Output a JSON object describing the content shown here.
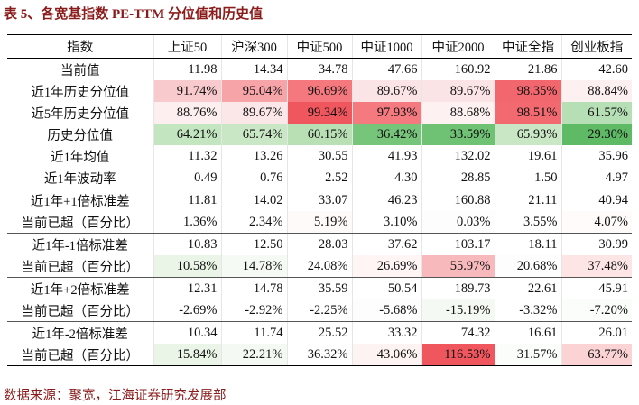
{
  "header": {
    "title": "表 5、各宽基指数 PE-TTM 分位值和历史值"
  },
  "table": {
    "columns": [
      "指数",
      "上证50",
      "沪深300",
      "中证500",
      "中证1000",
      "中证2000",
      "中证全指",
      "创业板指"
    ],
    "rows": [
      {
        "label": "当前值",
        "cells": [
          "11.98",
          "14.34",
          "34.78",
          "47.66",
          "160.92",
          "21.86",
          "42.60"
        ],
        "colors": [
          "#ffffff",
          "#ffffff",
          "#ffffff",
          "#ffffff",
          "#ffffff",
          "#ffffff",
          "#ffffff"
        ]
      },
      {
        "label": "近1年历史分位值",
        "cells": [
          "91.74%",
          "95.04%",
          "96.69%",
          "89.67%",
          "89.67%",
          "98.35%",
          "88.84%"
        ],
        "colors": [
          "#f9cacd",
          "#f7a4a9",
          "#f4787e",
          "#fbe4e6",
          "#fbe4e6",
          "#f2676e",
          "#fdf0f1"
        ]
      },
      {
        "label": "近5年历史分位值",
        "cells": [
          "88.76%",
          "89.67%",
          "99.34%",
          "97.93%",
          "88.68%",
          "98.51%",
          "61.57%"
        ],
        "colors": [
          "#fdeff0",
          "#fbe6e8",
          "#f0565d",
          "#f47a80",
          "#fdf1f2",
          "#f26a70",
          "#b7dfb5"
        ]
      },
      {
        "label": "历史分位值",
        "cells": [
          "64.21%",
          "65.74%",
          "60.15%",
          "36.42%",
          "33.59%",
          "65.93%",
          "29.30%"
        ],
        "colors": [
          "#c3e5bf",
          "#c9e7c5",
          "#b9e0b5",
          "#77c47b",
          "#6fc174",
          "#c9e7c5",
          "#5fba66"
        ]
      },
      {
        "label": "近1年均值",
        "cells": [
          "11.32",
          "13.26",
          "30.55",
          "41.93",
          "132.02",
          "19.61",
          "35.96"
        ],
        "colors": [
          "#ffffff",
          "#ffffff",
          "#ffffff",
          "#ffffff",
          "#ffffff",
          "#ffffff",
          "#ffffff"
        ]
      },
      {
        "label": "近1年波动率",
        "cells": [
          "0.49",
          "0.76",
          "2.52",
          "4.30",
          "28.85",
          "1.50",
          "4.97"
        ],
        "colors": [
          "#ffffff",
          "#ffffff",
          "#ffffff",
          "#ffffff",
          "#ffffff",
          "#ffffff",
          "#ffffff"
        ]
      },
      {
        "label": "近1年+1倍标准差",
        "cells": [
          "11.81",
          "14.02",
          "33.07",
          "46.23",
          "160.88",
          "21.11",
          "40.94"
        ],
        "colors": [
          "#ffffff",
          "#ffffff",
          "#ffffff",
          "#ffffff",
          "#ffffff",
          "#ffffff",
          "#ffffff"
        ]
      },
      {
        "label": "当前已超（百分比）",
        "cells": [
          "1.36%",
          "2.34%",
          "5.19%",
          "3.10%",
          "0.03%",
          "3.55%",
          "4.07%"
        ],
        "colors": [
          "#ffffff",
          "#ffffff",
          "#fffafa",
          "#ffffff",
          "#fcfdfc",
          "#ffffff",
          "#fffbfb"
        ]
      },
      {
        "label": "近1年-1倍标准差",
        "cells": [
          "10.83",
          "12.50",
          "28.03",
          "37.62",
          "103.17",
          "18.11",
          "30.99"
        ],
        "colors": [
          "#ffffff",
          "#ffffff",
          "#ffffff",
          "#ffffff",
          "#ffffff",
          "#ffffff",
          "#ffffff"
        ]
      },
      {
        "label": "当前已超（百分比）",
        "cells": [
          "10.58%",
          "14.78%",
          "24.08%",
          "26.69%",
          "55.97%",
          "20.68%",
          "37.48%"
        ],
        "colors": [
          "#eaf5e8",
          "#f5faf4",
          "#ffffff",
          "#fff5f5",
          "#f8b9bc",
          "#fcfdfc",
          "#fde4e5"
        ]
      },
      {
        "label": "近1年+2倍标准差",
        "cells": [
          "12.31",
          "14.78",
          "35.59",
          "50.54",
          "189.73",
          "22.61",
          "45.91"
        ],
        "colors": [
          "#ffffff",
          "#ffffff",
          "#ffffff",
          "#ffffff",
          "#ffffff",
          "#ffffff",
          "#ffffff"
        ]
      },
      {
        "label": "当前已超（百分比）",
        "cells": [
          "-2.69%",
          "-2.92%",
          "-2.25%",
          "-5.68%",
          "-15.19%",
          "-3.32%",
          "-7.20%"
        ],
        "colors": [
          "#ffffff",
          "#ffffff",
          "#ffffff",
          "#fcfdfc",
          "#f4f9f3",
          "#ffffff",
          "#fbfdfb"
        ]
      },
      {
        "label": "近1年-2倍标准差",
        "cells": [
          "10.34",
          "11.74",
          "25.52",
          "33.32",
          "74.32",
          "16.61",
          "26.01"
        ],
        "colors": [
          "#ffffff",
          "#ffffff",
          "#ffffff",
          "#ffffff",
          "#ffffff",
          "#ffffff",
          "#ffffff"
        ]
      },
      {
        "label": "当前已超（百分比）",
        "cells": [
          "15.84%",
          "22.21%",
          "36.32%",
          "43.06%",
          "116.53%",
          "31.57%",
          "63.77%"
        ],
        "colors": [
          "#eaf5e8",
          "#f4f9f3",
          "#ffffff",
          "#fef3f3",
          "#f0565d",
          "#fbfdfb",
          "#fbd3d5"
        ]
      }
    ]
  },
  "footer": {
    "source": "数据来源：聚宽，江海证券研究发展部"
  }
}
